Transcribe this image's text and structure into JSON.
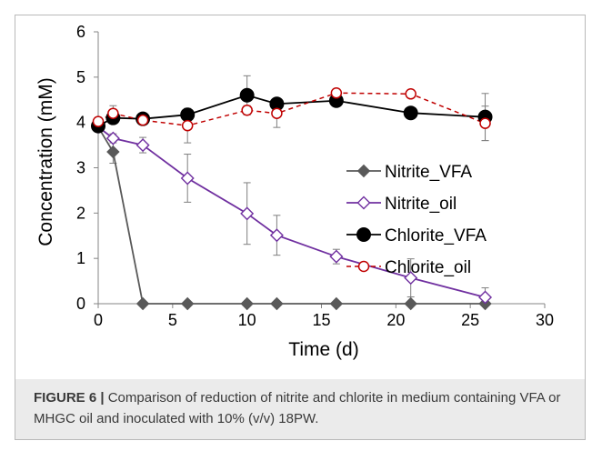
{
  "chart_data": {
    "type": "line",
    "title": "",
    "xlabel": "Time (d)",
    "ylabel": "Concentration (mM)",
    "xlim": [
      0,
      30
    ],
    "ylim": [
      0,
      6
    ],
    "x_ticks": [
      "0",
      "5",
      "10",
      "15",
      "20",
      "25",
      "30"
    ],
    "y_ticks": [
      "0",
      "1",
      "2",
      "3",
      "4",
      "5",
      "6"
    ],
    "grid": false,
    "legend_position": "right",
    "series": [
      {
        "name": "Nitrite_VFA",
        "color": "#595959",
        "marker": "filled-diamond",
        "line": "solid",
        "points": [
          {
            "x": 0,
            "y": 3.9,
            "err": 0.1
          },
          {
            "x": 1,
            "y": 3.35,
            "err": 0.25
          },
          {
            "x": 3,
            "y": 0,
            "err": 0
          },
          {
            "x": 6,
            "y": 0,
            "err": 0
          },
          {
            "x": 10,
            "y": 0,
            "err": 0
          },
          {
            "x": 12,
            "y": 0,
            "err": 0
          },
          {
            "x": 16,
            "y": 0,
            "err": 0
          },
          {
            "x": 21,
            "y": 0,
            "err": 0
          },
          {
            "x": 26,
            "y": 0,
            "err": 0
          }
        ]
      },
      {
        "name": "Nitrite_oil",
        "color": "#7030a0",
        "marker": "open-diamond",
        "line": "solid",
        "points": [
          {
            "x": 0,
            "y": 3.9,
            "err": 0.1
          },
          {
            "x": 1,
            "y": 3.65,
            "err": 0.1
          },
          {
            "x": 3,
            "y": 3.5,
            "err": 0.17
          },
          {
            "x": 6,
            "y": 2.77,
            "err": 0.53
          },
          {
            "x": 10,
            "y": 1.99,
            "err": 0.68
          },
          {
            "x": 12,
            "y": 1.51,
            "err": 0.44
          },
          {
            "x": 16,
            "y": 1.04,
            "err": 0.16
          },
          {
            "x": 21,
            "y": 0.57,
            "err": 0.42
          },
          {
            "x": 26,
            "y": 0.14,
            "err": 0.21
          }
        ]
      },
      {
        "name": "Chlorite_VFA",
        "color": "#000000",
        "marker": "filled-circle",
        "line": "solid",
        "points": [
          {
            "x": 0,
            "y": 3.92,
            "err": 0.12
          },
          {
            "x": 1,
            "y": 4.1,
            "err": 0.1
          },
          {
            "x": 3,
            "y": 4.08,
            "err": 0.06
          },
          {
            "x": 6,
            "y": 4.17,
            "err": 0.12
          },
          {
            "x": 10,
            "y": 4.6,
            "err": 0.43
          },
          {
            "x": 12,
            "y": 4.41,
            "err": 0.1
          },
          {
            "x": 16,
            "y": 4.48,
            "err": 0
          },
          {
            "x": 21,
            "y": 4.21,
            "err": 0
          },
          {
            "x": 26,
            "y": 4.12,
            "err": 0.52
          }
        ]
      },
      {
        "name": "Chlorite_oil",
        "color": "#c00000",
        "marker": "open-circle",
        "line": "dashed",
        "points": [
          {
            "x": 0,
            "y": 4.02,
            "err": 0.08
          },
          {
            "x": 1,
            "y": 4.2,
            "err": 0.17
          },
          {
            "x": 3,
            "y": 4.05,
            "err": 0.06
          },
          {
            "x": 6,
            "y": 3.93,
            "err": 0.38
          },
          {
            "x": 10,
            "y": 4.27,
            "err": 0.1
          },
          {
            "x": 12,
            "y": 4.2,
            "err": 0.31
          },
          {
            "x": 16,
            "y": 4.65,
            "err": 0
          },
          {
            "x": 21,
            "y": 4.63,
            "err": 0
          },
          {
            "x": 26,
            "y": 3.98,
            "err": 0.38
          }
        ]
      }
    ]
  },
  "caption": {
    "lead": "FIGURE 6 |",
    "text": " Comparison of reduction of nitrite and chlorite in medium containing VFA or MHGC oil and inoculated with 10% (v/v) 18PW."
  }
}
